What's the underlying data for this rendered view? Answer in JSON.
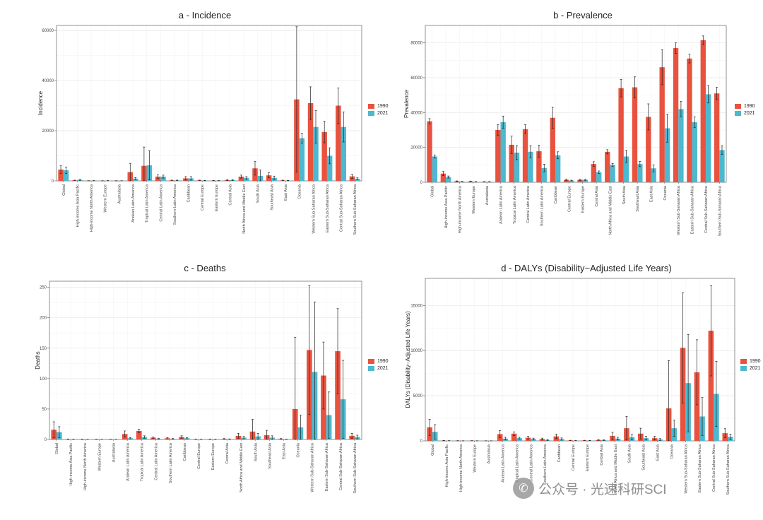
{
  "categories": [
    "Global",
    "High-income Asia Pacific",
    "High-income North America",
    "Western Europe",
    "Australasia",
    "Andean Latin America",
    "Tropical Latin America",
    "Central Latin America",
    "Southern Latin America",
    "Caribbean",
    "Central Europe",
    "Eastern Europe",
    "Central Asia",
    "North Africa and Middle East",
    "South Asia",
    "Southeast Asia",
    "East Asia",
    "Oceania",
    "Western Sub-Saharan Africa",
    "Eastern Sub-Saharan Africa",
    "Central Sub-Saharan Africa",
    "Southern Sub-Saharan Africa"
  ],
  "colors": {
    "y1990": "#E8523E",
    "y2021": "#4DB8CF",
    "errorbar": "#222222",
    "grid": "#e6e6e6"
  },
  "watermark": {
    "text": "公众号 · 光速科研SCI",
    "icon": "wechat-icon"
  },
  "chart_data": [
    {
      "type": "bar",
      "title": "a - Incidence",
      "ylabel": "Incidence",
      "ylim": [
        0,
        62000
      ],
      "yticks": [
        0,
        20000,
        40000,
        60000
      ],
      "legend_position": "right",
      "series": [
        {
          "name": "1990",
          "values": [
            4500,
            200,
            50,
            50,
            50,
            3500,
            6000,
            1700,
            200,
            1000,
            200,
            100,
            300,
            1700,
            5000,
            2200,
            200,
            32500,
            31000,
            19500,
            30000,
            1800
          ],
          "errors": [
            1500,
            100,
            30,
            30,
            30,
            3500,
            7500,
            700,
            100,
            700,
            100,
            80,
            200,
            600,
            2700,
            1000,
            100,
            29000,
            6500,
            4300,
            7000,
            800
          ]
        },
        {
          "name": "2021",
          "values": [
            4200,
            400,
            80,
            80,
            50,
            900,
            6200,
            1700,
            200,
            1000,
            100,
            80,
            300,
            1200,
            2000,
            1200,
            100,
            17000,
            21500,
            10000,
            21500,
            800
          ],
          "errors": [
            1300,
            200,
            50,
            50,
            30,
            400,
            5800,
            600,
            100,
            700,
            80,
            60,
            200,
            500,
            2300,
            700,
            80,
            2000,
            6500,
            3200,
            6000,
            400
          ]
        }
      ]
    },
    {
      "type": "bar",
      "title": "b - Prevalence",
      "ylabel": "Prevalence",
      "ylim": [
        0,
        90000
      ],
      "yticks": [
        0,
        20000,
        40000,
        60000,
        80000
      ],
      "legend_position": "right",
      "series": [
        {
          "name": "1990",
          "values": [
            35000,
            5000,
            600,
            500,
            300,
            30000,
            21500,
            30500,
            17800,
            37000,
            1400,
            1400,
            10500,
            17500,
            54000,
            54500,
            37500,
            66000,
            77000,
            71000,
            81500,
            51000
          ],
          "errors": [
            1500,
            1200,
            200,
            200,
            100,
            3000,
            5000,
            2500,
            3500,
            6000,
            300,
            300,
            1300,
            1200,
            5000,
            6000,
            7500,
            10000,
            3000,
            2500,
            2500,
            3500
          ]
        },
        {
          "name": "2021",
          "values": [
            14800,
            3000,
            400,
            300,
            300,
            34500,
            17000,
            17500,
            8200,
            15500,
            1000,
            1400,
            5800,
            10000,
            14800,
            10500,
            8000,
            31000,
            42000,
            34500,
            50500,
            18500
          ],
          "errors": [
            900,
            600,
            100,
            100,
            100,
            3500,
            4000,
            3500,
            2200,
            2000,
            200,
            300,
            700,
            800,
            3500,
            1500,
            2000,
            8000,
            4500,
            3000,
            5000,
            2500
          ]
        }
      ]
    },
    {
      "type": "bar",
      "title": "c - Deaths",
      "ylabel": "Deaths",
      "ylim": [
        0,
        260
      ],
      "yticks": [
        0,
        50,
        100,
        150,
        200,
        250
      ],
      "legend_position": "right",
      "series": [
        {
          "name": "1990",
          "values": [
            16,
            0.5,
            0.3,
            0.3,
            0.2,
            9,
            14,
            3,
            2,
            4,
            0.5,
            0.5,
            1,
            6,
            13,
            7,
            1,
            50,
            147,
            105,
            145,
            6
          ],
          "errors": [
            13,
            0.3,
            0.2,
            0.2,
            0.1,
            5,
            3,
            1,
            1,
            2,
            0.2,
            0.2,
            0.5,
            4,
            20,
            8,
            0.5,
            118,
            106,
            55,
            70,
            4
          ]
        },
        {
          "name": "2021",
          "values": [
            12,
            0.3,
            0.2,
            0.2,
            0.1,
            2,
            4,
            1,
            1,
            2,
            0.3,
            0.3,
            0.6,
            3,
            5,
            3,
            0.4,
            20,
            111,
            40,
            66,
            4
          ],
          "errors": [
            9,
            0.2,
            0.1,
            0.1,
            0.1,
            1,
            2,
            0.6,
            0.5,
            1,
            0.2,
            0.2,
            0.3,
            2,
            5,
            3,
            0.2,
            20,
            115,
            38,
            64,
            3
          ]
        }
      ]
    },
    {
      "type": "bar",
      "title": "d - DALYs (Disability−Adjusted Life Years)",
      "ylabel": "DALYs (Disability−Adjusted Life Years)",
      "ylim": [
        0,
        18000
      ],
      "yticks": [
        0,
        5000,
        10000,
        15000
      ],
      "legend_position": "right",
      "series": [
        {
          "name": "1990",
          "values": [
            1500,
            30,
            20,
            20,
            10,
            750,
            800,
            350,
            200,
            500,
            50,
            50,
            100,
            550,
            1400,
            800,
            300,
            3600,
            10300,
            7600,
            12200,
            850
          ],
          "errors": [
            900,
            20,
            10,
            10,
            5,
            400,
            200,
            150,
            100,
            250,
            20,
            20,
            50,
            400,
            1300,
            600,
            200,
            5300,
            6100,
            3600,
            5000,
            500
          ]
        },
        {
          "name": "2021",
          "values": [
            1000,
            20,
            10,
            10,
            10,
            250,
            300,
            200,
            100,
            200,
            30,
            40,
            80,
            250,
            400,
            300,
            150,
            1400,
            6400,
            2700,
            5200,
            450
          ],
          "errors": [
            800,
            10,
            5,
            5,
            5,
            150,
            100,
            100,
            60,
            120,
            10,
            20,
            40,
            150,
            300,
            200,
            100,
            900,
            5400,
            2100,
            3600,
            300
          ]
        }
      ]
    }
  ]
}
